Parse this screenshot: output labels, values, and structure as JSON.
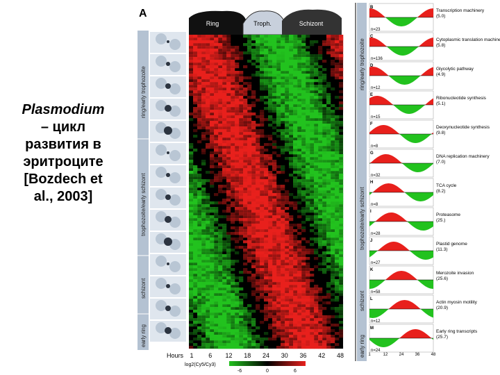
{
  "caption": {
    "genus": "Plasmodium",
    "line1": "– цикл",
    "line2": "развития в",
    "line3": "эритроците",
    "line4": "[Bozdech et",
    "line5": "al., 2003]"
  },
  "figure": {
    "panel_label": "A",
    "stages": [
      "Ring",
      "Troph.",
      "Schizont"
    ],
    "stage_side_labels": [
      "ring/early trophozoite",
      "trophozoite/early schizont",
      "schizont",
      "early ring"
    ],
    "hours_label": "Hours",
    "hours_ticks": [
      "1",
      "6",
      "12",
      "18",
      "24",
      "30",
      "36",
      "42",
      "48"
    ],
    "colorbar_label": "log2(Cy5/Cy3)",
    "colorbar_ticks": [
      "-6",
      "0",
      "6"
    ],
    "right_stage_labels": [
      "ring/early trophozoite",
      "trophozoite/early schizont",
      "schizont",
      "early ring"
    ],
    "profile_x_ticks": [
      "1",
      "12",
      "24",
      "36",
      "48"
    ],
    "profiles": [
      {
        "letter": "B",
        "label": "Transcription machinery",
        "value": "(5.0)",
        "n": "n=23"
      },
      {
        "letter": "C",
        "label": "Cytoplasmic translation machinery",
        "value": "(5.8)",
        "n": "n=136"
      },
      {
        "letter": "D",
        "label": "Glycolytic pathway",
        "value": "(4.9)",
        "n": "n=12"
      },
      {
        "letter": "E",
        "label": "Ribonucleotide synthesis",
        "value": "(5.1)",
        "n": "n=15"
      },
      {
        "letter": "F",
        "label": "Deoxynucleotide synthesis",
        "value": "(9.8)",
        "n": "n=8"
      },
      {
        "letter": "G",
        "label": "DNA replication machinery",
        "value": "(7.0)",
        "n": "n=32"
      },
      {
        "letter": "H",
        "label": "TCA cycle",
        "value": "(8.2)",
        "n": "n=8"
      },
      {
        "letter": "I",
        "label": "Proteasome",
        "value": "(25.)",
        "n": "n=28"
      },
      {
        "letter": "J",
        "label": "Plastid genome",
        "value": "(11.3)",
        "n": "n=27"
      },
      {
        "letter": "K",
        "label": "Merozoite invasion",
        "value": "(25.6)",
        "n": "n=58"
      },
      {
        "letter": "L",
        "label": "Actin myosin motility",
        "value": "(20.9)",
        "n": "n=12"
      },
      {
        "letter": "M",
        "label": "Early ring transcripts",
        "value": "(25.7)",
        "n": "n=24"
      }
    ],
    "colors": {
      "up": "#e8201c",
      "down": "#22c21e",
      "zero": "#000000",
      "cell": "#b9c6d4"
    }
  }
}
